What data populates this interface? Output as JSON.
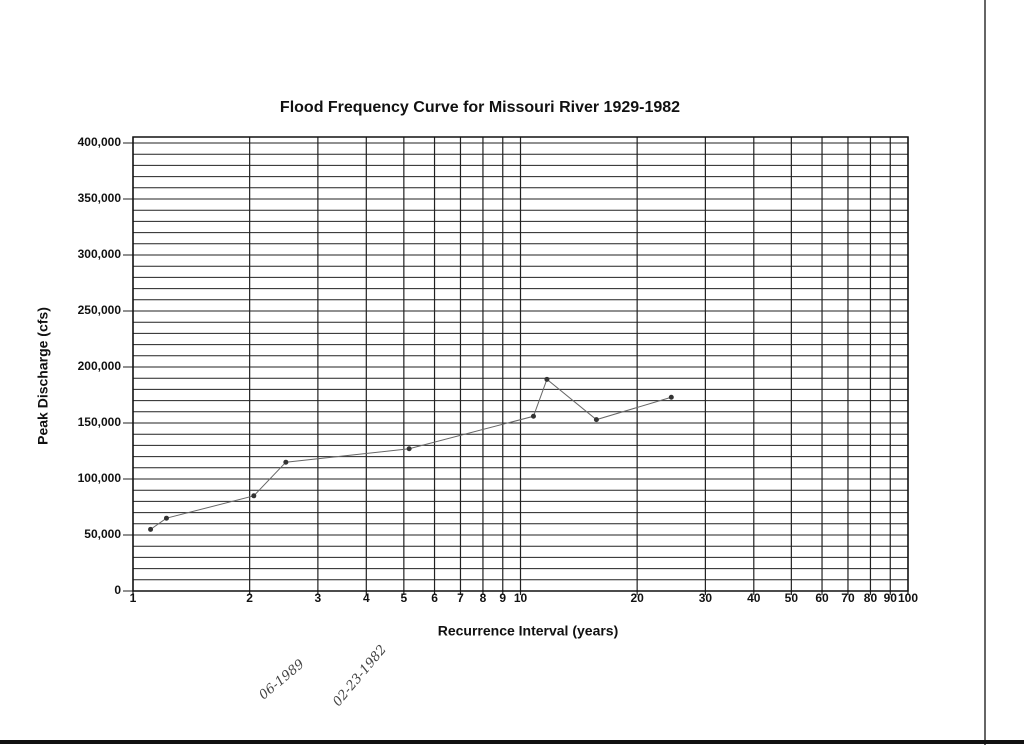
{
  "chart_data": {
    "type": "line",
    "title": "Flood Frequency Curve for Missouri River 1929-1982",
    "xlabel": "Recurrence Interval (years)",
    "ylabel": "Peak Discharge (cfs)",
    "xscale": "log",
    "xlim": [
      1,
      100
    ],
    "ylim": [
      0,
      400000
    ],
    "xticks": [
      1,
      2,
      3,
      4,
      5,
      6,
      7,
      8,
      9,
      10,
      20,
      30,
      40,
      50,
      60,
      70,
      80,
      90,
      100
    ],
    "yticks": [
      0,
      {
        "value": 50000,
        "label": "50,000"
      },
      {
        "value": 100000,
        "label": "100,000"
      },
      {
        "value": 150000,
        "label": "150,000"
      },
      {
        "value": 200000,
        "label": "200,000"
      },
      {
        "value": 250000,
        "label": "250,000"
      },
      {
        "value": 300000,
        "label": "300,000"
      },
      {
        "value": 350000,
        "label": "350,000"
      },
      {
        "value": 400000,
        "label": "400,000"
      }
    ],
    "y_grid": [
      0,
      10000,
      20000,
      30000,
      40000,
      50000,
      60000,
      70000,
      80000,
      90000,
      100000,
      110000,
      120000,
      130000,
      140000,
      150000,
      160000,
      170000,
      180000,
      190000,
      200000,
      210000,
      220000,
      230000,
      240000,
      250000,
      260000,
      270000,
      280000,
      290000,
      300000,
      310000,
      320000,
      330000,
      340000,
      350000,
      360000,
      370000,
      380000,
      390000,
      400000
    ],
    "grid": true,
    "series": [
      {
        "color": "#666666",
        "x": [
          1.11,
          1.22,
          2.05,
          2.48,
          5.16,
          10.8,
          11.7,
          15.7,
          24.5
        ],
        "values": [
          55000,
          65000,
          85000,
          115000,
          127000,
          156000,
          189000,
          153000,
          173000
        ]
      }
    ],
    "annotations": [
      "06-1989",
      "02-23-1982"
    ]
  }
}
